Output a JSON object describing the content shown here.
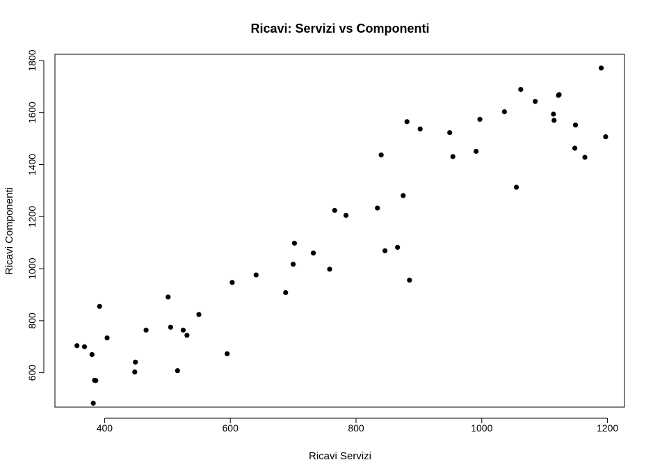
{
  "chart_data": {
    "type": "scatter",
    "title": "Ricavi: Servizi vs Componenti",
    "xlabel": "Ricavi Servizi",
    "ylabel": "Ricavi Componenti",
    "xlim": [
      321,
      1227
    ],
    "ylim": [
      468,
      1824
    ],
    "xticks": [
      400,
      600,
      800,
      1000,
      1200
    ],
    "yticks": [
      600,
      800,
      1000,
      1200,
      1400,
      1600,
      1800
    ],
    "grid": false,
    "legend": "none",
    "color": "#000000",
    "points": [
      {
        "x": 356,
        "y": 704
      },
      {
        "x": 368,
        "y": 700
      },
      {
        "x": 380,
        "y": 670
      },
      {
        "x": 384,
        "y": 571
      },
      {
        "x": 386,
        "y": 570
      },
      {
        "x": 382,
        "y": 483
      },
      {
        "x": 392,
        "y": 855
      },
      {
        "x": 404,
        "y": 734
      },
      {
        "x": 448,
        "y": 603
      },
      {
        "x": 449,
        "y": 641
      },
      {
        "x": 466,
        "y": 764
      },
      {
        "x": 501,
        "y": 891
      },
      {
        "x": 505,
        "y": 775
      },
      {
        "x": 516,
        "y": 608
      },
      {
        "x": 525,
        "y": 764
      },
      {
        "x": 531,
        "y": 744
      },
      {
        "x": 550,
        "y": 824
      },
      {
        "x": 595,
        "y": 673
      },
      {
        "x": 603,
        "y": 947
      },
      {
        "x": 641,
        "y": 976
      },
      {
        "x": 688,
        "y": 908
      },
      {
        "x": 700,
        "y": 1017
      },
      {
        "x": 702,
        "y": 1098
      },
      {
        "x": 732,
        "y": 1060
      },
      {
        "x": 758,
        "y": 998
      },
      {
        "x": 766,
        "y": 1224
      },
      {
        "x": 784,
        "y": 1205
      },
      {
        "x": 834,
        "y": 1233
      },
      {
        "x": 840,
        "y": 1437
      },
      {
        "x": 846,
        "y": 1069
      },
      {
        "x": 866,
        "y": 1082
      },
      {
        "x": 875,
        "y": 1281
      },
      {
        "x": 881,
        "y": 1565
      },
      {
        "x": 885,
        "y": 956
      },
      {
        "x": 902,
        "y": 1537
      },
      {
        "x": 949,
        "y": 1523
      },
      {
        "x": 954,
        "y": 1431
      },
      {
        "x": 991,
        "y": 1451
      },
      {
        "x": 997,
        "y": 1574
      },
      {
        "x": 1036,
        "y": 1603
      },
      {
        "x": 1055,
        "y": 1313
      },
      {
        "x": 1062,
        "y": 1689
      },
      {
        "x": 1085,
        "y": 1643
      },
      {
        "x": 1114,
        "y": 1594
      },
      {
        "x": 1115,
        "y": 1570
      },
      {
        "x": 1122,
        "y": 1666
      },
      {
        "x": 1123,
        "y": 1669
      },
      {
        "x": 1148,
        "y": 1463
      },
      {
        "x": 1149,
        "y": 1552
      },
      {
        "x": 1164,
        "y": 1428
      },
      {
        "x": 1190,
        "y": 1771
      },
      {
        "x": 1197,
        "y": 1507
      }
    ]
  }
}
